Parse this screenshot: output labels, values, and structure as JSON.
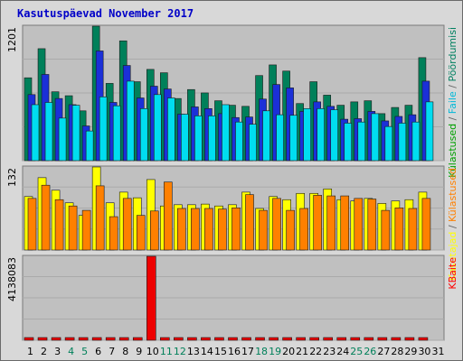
{
  "chart_data": {
    "title": "Kasutuspäevad November 2017",
    "type": "bar",
    "x": [
      1,
      2,
      3,
      4,
      5,
      6,
      7,
      8,
      9,
      10,
      11,
      12,
      13,
      14,
      15,
      16,
      17,
      18,
      19,
      20,
      21,
      22,
      23,
      24,
      25,
      26,
      27,
      28,
      29,
      30,
      31
    ],
    "weekend_days": [
      4,
      5,
      11,
      12,
      18,
      19,
      25,
      26
    ],
    "panels": [
      {
        "id": "requests",
        "ymax_label": "1201",
        "ymax": 1201,
        "side_labels": [
          {
            "text": "Külastused",
            "color": "#00a000"
          },
          {
            "text": " / ",
            "color": "#666666"
          },
          {
            "text": "Faile",
            "color": "#00b8d8"
          },
          {
            "text": " / ",
            "color": "#666666"
          },
          {
            "text": "Pöördumisi",
            "color": "#008060"
          }
        ],
        "series": [
          {
            "name": "Pöördumisi",
            "color": "#00805a",
            "values": [
              740,
              1000,
              615,
              580,
              445,
              1201,
              690,
              1070,
              705,
              815,
              785,
              555,
              635,
              605,
              535,
              495,
              485,
              760,
              855,
              800,
              510,
              705,
              585,
              495,
              525,
              535,
              420,
              475,
              495,
              920,
              null
            ]
          },
          {
            "name": "Faile",
            "color": "#1b30d8",
            "values": [
              590,
              770,
              555,
              500,
              310,
              980,
              520,
              850,
              560,
              665,
              640,
              415,
              480,
              465,
              420,
              385,
              390,
              550,
              680,
              650,
              440,
              525,
              485,
              370,
              375,
              440,
              355,
              395,
              410,
              710,
              null
            ]
          },
          {
            "name": "Külastused",
            "color": "#00ddf0",
            "values": [
              500,
              520,
              380,
              495,
              265,
              570,
              490,
              710,
              465,
              590,
              560,
              415,
              400,
              400,
              500,
              345,
              325,
              445,
              410,
              405,
              465,
              465,
              455,
              335,
              345,
              420,
              305,
              335,
              345,
              525,
              null
            ]
          }
        ]
      },
      {
        "id": "visits",
        "ymax_label": "132",
        "ymax": 132,
        "side_labels": [
          {
            "text": "Kasutajad",
            "color": "#ffff00"
          },
          {
            "text": " / ",
            "color": "#666666"
          },
          {
            "text": "Külastused",
            "color": "#ff8000"
          }
        ],
        "series": [
          {
            "name": "Kasutajad",
            "color": "#ffff00",
            "values": [
              85,
              115,
              95,
              75,
              55,
              132,
              75,
              92,
              83,
              112,
              70,
              72,
              72,
              73,
              70,
              72,
              92,
              66,
              85,
              80,
              90,
              90,
              97,
              80,
              78,
              82,
              74,
              78,
              80,
              92,
              null
            ]
          },
          {
            "name": "Külastused",
            "color": "#ff8000",
            "values": [
              82,
              103,
              80,
              70,
              63,
              102,
              53,
              82,
              55,
              62,
              108,
              66,
              66,
              66,
              65,
              67,
              88,
              63,
              82,
              63,
              66,
              87,
              86,
              86,
              82,
              81,
              63,
              67,
              66,
              82,
              null
            ]
          }
        ]
      },
      {
        "id": "kbytes",
        "ymax_label": "4138083",
        "ymax": 4138083,
        "side_labels": [
          {
            "text": "KBaite",
            "color": "#ff0000"
          }
        ],
        "series": [
          {
            "name": "KBaite",
            "color": "#ee0000",
            "values": [
              120000,
              110000,
              50000,
              165000,
              90000,
              230000,
              60000,
              70000,
              110000,
              4138083,
              70000,
              50000,
              180000,
              80000,
              60000,
              160000,
              70000,
              50000,
              60000,
              130000,
              100000,
              130000,
              130000,
              130000,
              110000,
              50000,
              320000,
              110000,
              100000,
              80000,
              null
            ]
          }
        ]
      }
    ]
  }
}
